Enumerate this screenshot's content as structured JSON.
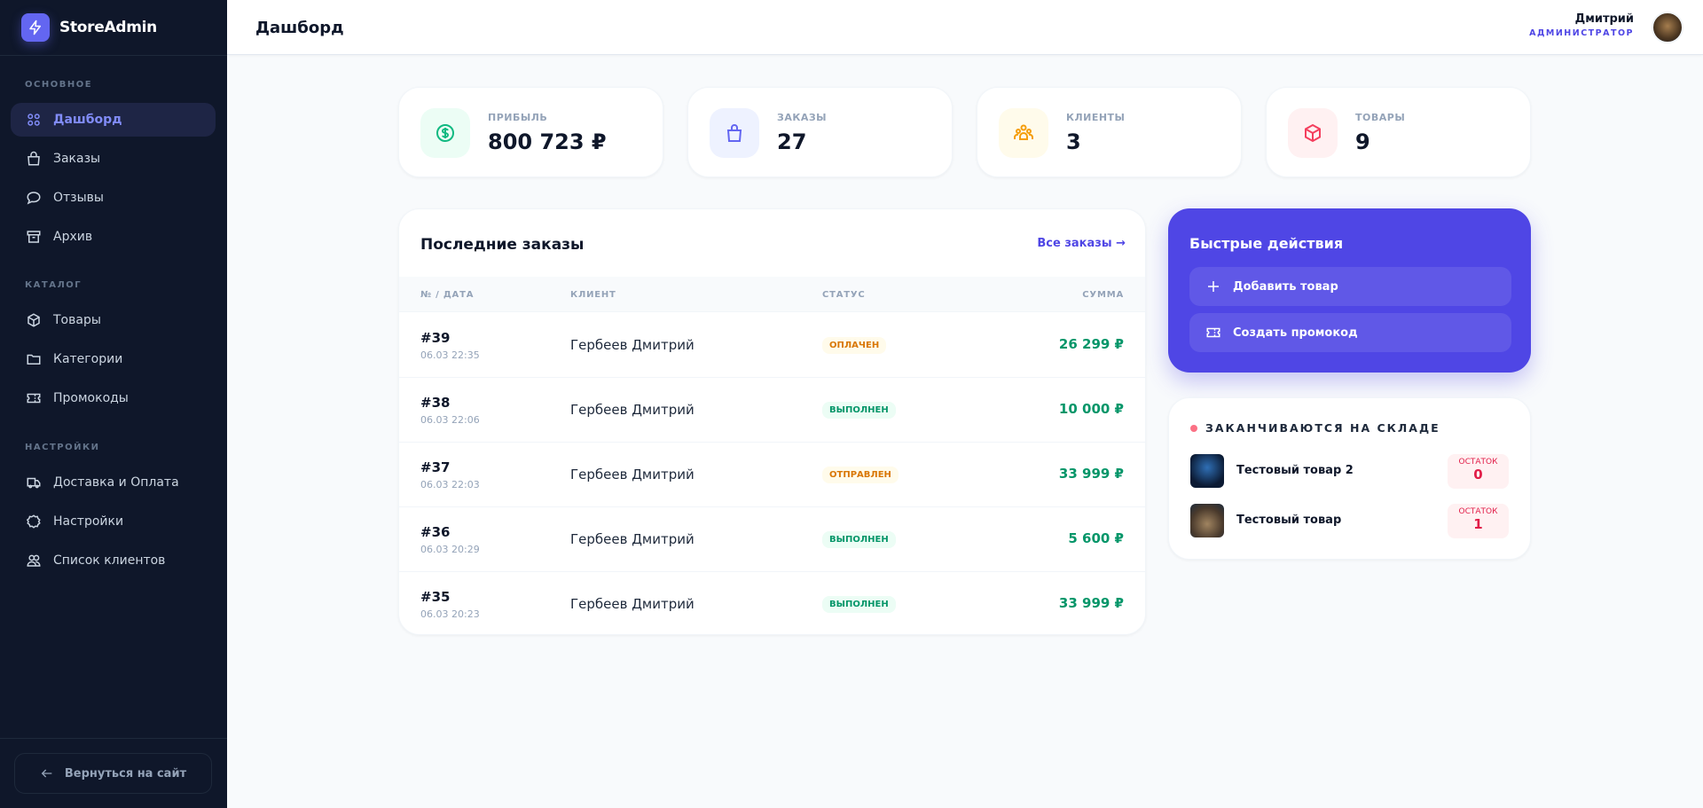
{
  "brand": {
    "name": "StoreAdmin",
    "accent": "#6366f1"
  },
  "sidebar": {
    "sections": [
      {
        "title": "ОСНОВНОЕ",
        "items": [
          {
            "label": "Дашборд",
            "icon": "grid-icon",
            "active": true
          },
          {
            "label": "Заказы",
            "icon": "shopping-bag-icon"
          },
          {
            "label": "Отзывы",
            "icon": "chat-icon"
          },
          {
            "label": "Архив",
            "icon": "archive-icon"
          }
        ]
      },
      {
        "title": "КАТАЛОГ",
        "items": [
          {
            "label": "Товары",
            "icon": "box-icon"
          },
          {
            "label": "Категории",
            "icon": "folder-icon"
          },
          {
            "label": "Промокоды",
            "icon": "ticket-icon"
          }
        ]
      },
      {
        "title": "НАСТРОЙКИ",
        "items": [
          {
            "label": "Доставка и Оплата",
            "icon": "truck-icon"
          },
          {
            "label": "Настройки",
            "icon": "gear-icon"
          },
          {
            "label": "Список клиентов",
            "icon": "users-icon"
          }
        ]
      }
    ],
    "back_label": "Вернуться на сайт"
  },
  "header": {
    "title": "Дашборд",
    "user_name": "Дмитрий",
    "user_role": "АДМИНИСТРАТОР"
  },
  "stats": [
    {
      "label": "ПРИБЫЛЬ",
      "value": "800 723 ₽",
      "icon": "dollar-icon",
      "color": "#10b981"
    },
    {
      "label": "ЗАКАЗЫ",
      "value": "27",
      "icon": "shopping-bag-icon",
      "color": "#6366f1"
    },
    {
      "label": "КЛИЕНТЫ",
      "value": "3",
      "icon": "users-icon",
      "color": "#f59e0b"
    },
    {
      "label": "ТОВАРЫ",
      "value": "9",
      "icon": "box-icon",
      "color": "#f43f5e"
    }
  ],
  "orders": {
    "title": "Последние заказы",
    "all_link": "Все заказы →",
    "columns": [
      "№ / ДАТА",
      "КЛИЕНТ",
      "СТАТУС",
      "СУММА"
    ],
    "rows": [
      {
        "id": "#39",
        "date": "06.03 22:35",
        "client": "Гербеев Дмитрий",
        "status": "ОПЛАЧЕН",
        "sum": "26 299 ₽"
      },
      {
        "id": "#38",
        "date": "06.03 22:06",
        "client": "Гербеев Дмитрий",
        "status": "ВЫПОЛНЕН",
        "sum": "10 000 ₽"
      },
      {
        "id": "#37",
        "date": "06.03 22:03",
        "client": "Гербеев Дмитрий",
        "status": "ОТПРАВЛЕН",
        "sum": "33 999 ₽"
      },
      {
        "id": "#36",
        "date": "06.03 20:29",
        "client": "Гербеев Дмитрий",
        "status": "ВЫПОЛНЕН",
        "sum": "5 600 ₽"
      },
      {
        "id": "#35",
        "date": "06.03 20:23",
        "client": "Гербеев Дмитрий",
        "status": "ВЫПОЛНЕН",
        "sum": "33 999 ₽"
      }
    ]
  },
  "quick_actions": {
    "title": "Быстрые действия",
    "buttons": [
      {
        "label": "Добавить товар",
        "icon": "plus-icon"
      },
      {
        "label": "Создать промокод",
        "icon": "ticket-icon"
      }
    ]
  },
  "low_stock": {
    "title": "ЗАКАНЧИВАЮТСЯ НА СКЛАДЕ",
    "remain_label": "ОСТАТОК",
    "items": [
      {
        "name": "Тестовый товар 2",
        "remain": "0"
      },
      {
        "name": "Тестовый товар",
        "remain": "1"
      }
    ]
  }
}
